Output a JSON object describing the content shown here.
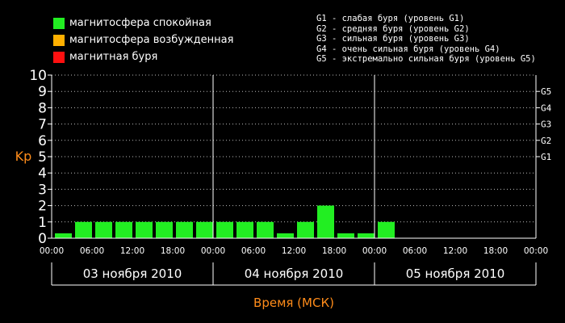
{
  "legend": {
    "items": [
      {
        "label": "магнитосфера спокойная",
        "color": "#22ee22"
      },
      {
        "label": "магнитосфера возбужденная",
        "color": "#ffb000"
      },
      {
        "label": "магнитная буря",
        "color": "#ff1010"
      }
    ]
  },
  "storm_legend": [
    "G1 - слабая буря (уровень G1)",
    "G2 - средняя буря (уровень G2)",
    "G3 - сильная буря (уровень G3)",
    "G4 - очень сильная буря (уровень G4)",
    "G5 - экстремально сильная буря (уровень G5)"
  ],
  "chart_data": {
    "type": "bar",
    "ylabel": "Kp",
    "xlabel": "Время (МСК)",
    "ylim": [
      0,
      10
    ],
    "yticks": [
      "0",
      "1",
      "2",
      "3",
      "4",
      "5",
      "6",
      "7",
      "8",
      "9",
      "10"
    ],
    "right_ticks": [
      {
        "label": "G1",
        "value": 5
      },
      {
        "label": "G2",
        "value": 6
      },
      {
        "label": "G3",
        "value": 7
      },
      {
        "label": "G4",
        "value": 8
      },
      {
        "label": "G5",
        "value": 9
      }
    ],
    "xtick_labels": [
      "00:00",
      "06:00",
      "12:00",
      "18:00",
      "00:00",
      "06:00",
      "12:00",
      "18:00",
      "00:00",
      "06:00",
      "12:00",
      "18:00",
      "00:00"
    ],
    "days": [
      "03 ноября 2010",
      "04 ноября 2010",
      "05 ноября 2010"
    ],
    "bar_color": "#22ee22",
    "values": [
      0.3,
      1,
      1,
      1,
      1,
      1,
      1,
      1,
      1,
      1,
      1,
      0.3,
      1,
      2,
      0.3,
      0.3,
      1
    ],
    "total_slots": 24,
    "grid": true
  }
}
